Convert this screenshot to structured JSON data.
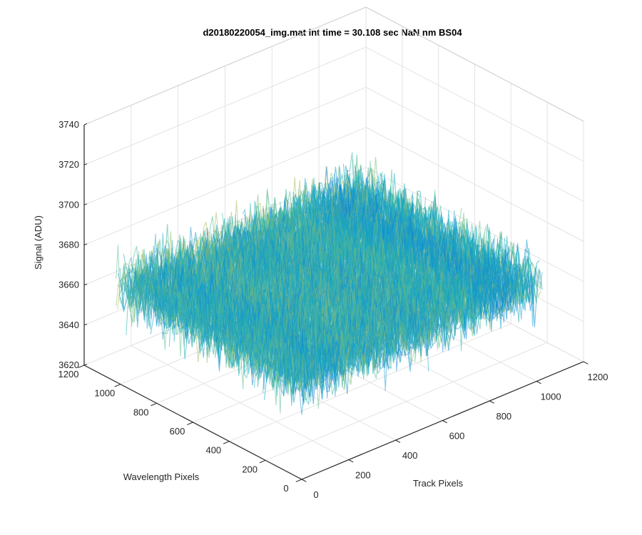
{
  "chart_data": {
    "type": "surface",
    "title": "d20180220054_img.mat int time = 30.108 sec  NaN nm BS04",
    "xlabel": "Track Pixels",
    "ylabel": "Wavelength Pixels",
    "zlabel": "Signal (ADU)",
    "xlim": [
      0,
      1200
    ],
    "ylim": [
      0,
      1200
    ],
    "zlim": [
      3620,
      3740
    ],
    "x_ticks": [
      "0",
      "200",
      "400",
      "600",
      "800",
      "1000",
      "1200"
    ],
    "y_ticks": [
      "0",
      "200",
      "400",
      "600",
      "800",
      "1000",
      "1200"
    ],
    "z_ticks": [
      "3620",
      "3640",
      "3660",
      "3680",
      "3700",
      "3720",
      "3740"
    ],
    "data_extent": {
      "x": [
        0,
        1024
      ],
      "y": [
        0,
        1024
      ]
    },
    "signal_mean": 3668,
    "signal_range": [
      3630,
      3712
    ],
    "colormap": "parula",
    "grid": true,
    "colors": {
      "low": "#0a72bd",
      "mid": "#1fb2c6",
      "high": "#c8c040"
    }
  }
}
